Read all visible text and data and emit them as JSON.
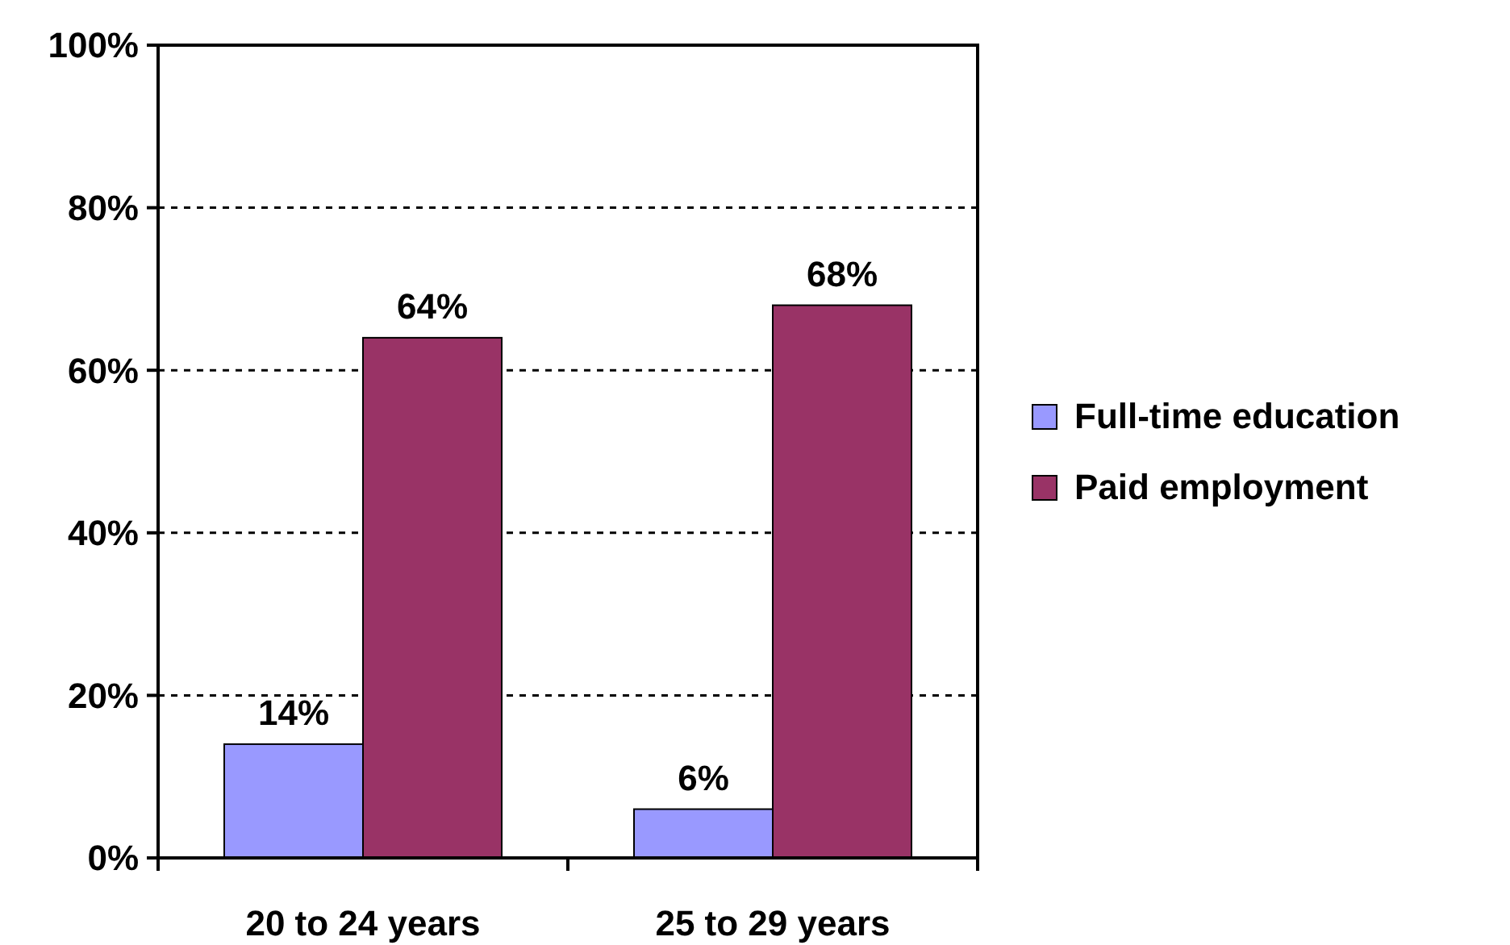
{
  "chart_data": {
    "type": "bar",
    "categories": [
      "20 to 24 years",
      "25 to 29 years"
    ],
    "series": [
      {
        "name": "Full-time education",
        "color": "#9999ff",
        "values": [
          14,
          6
        ],
        "value_labels": [
          "14%",
          "6%"
        ]
      },
      {
        "name": "Paid employment",
        "color": "#993366",
        "values": [
          64,
          68
        ],
        "value_labels": [
          "64%",
          "68%"
        ]
      }
    ],
    "ylim": [
      0,
      100
    ],
    "yticks": [
      {
        "value": 0,
        "label": "0%"
      },
      {
        "value": 20,
        "label": "20%"
      },
      {
        "value": 40,
        "label": "40%"
      },
      {
        "value": 60,
        "label": "60%"
      },
      {
        "value": 80,
        "label": "80%"
      },
      {
        "value": 100,
        "label": "100%"
      }
    ],
    "grid": "y",
    "line_style": "dashed",
    "legend": "right"
  }
}
